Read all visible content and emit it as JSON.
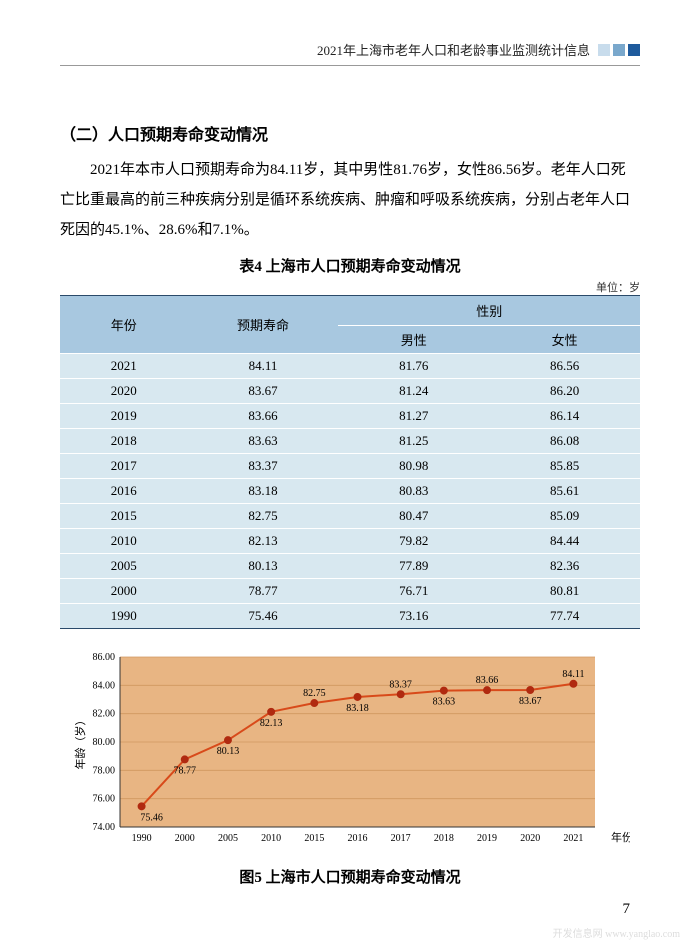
{
  "header": {
    "title": "2021年上海市老年人口和老龄事业监测统计信息",
    "box_colors": [
      "#c8dcec",
      "#7aa8cc",
      "#1e5a9c"
    ]
  },
  "section": {
    "heading": "（二）人口预期寿命变动情况",
    "paragraph": "2021年本市人口预期寿命为84.11岁，其中男性81.76岁，女性86.56岁。老年人口死亡比重最高的前三种疾病分别是循环系统疾病、肿瘤和呼吸系统疾病，分别占老年人口死因的45.1%、28.6%和7.1%。"
  },
  "table": {
    "caption": "表4  上海市人口预期寿命变动情况",
    "unit": "单位：岁",
    "headers": {
      "year": "年份",
      "life": "预期寿命",
      "gender": "性别",
      "male": "男性",
      "female": "女性"
    },
    "rows": [
      {
        "year": "2021",
        "life": "84.11",
        "male": "81.76",
        "female": "86.56"
      },
      {
        "year": "2020",
        "life": "83.67",
        "male": "81.24",
        "female": "86.20"
      },
      {
        "year": "2019",
        "life": "83.66",
        "male": "81.27",
        "female": "86.14"
      },
      {
        "year": "2018",
        "life": "83.63",
        "male": "81.25",
        "female": "86.08"
      },
      {
        "year": "2017",
        "life": "83.37",
        "male": "80.98",
        "female": "85.85"
      },
      {
        "year": "2016",
        "life": "83.18",
        "male": "80.83",
        "female": "85.61"
      },
      {
        "year": "2015",
        "life": "82.75",
        "male": "80.47",
        "female": "85.09"
      },
      {
        "year": "2010",
        "life": "82.13",
        "male": "79.82",
        "female": "84.44"
      },
      {
        "year": "2005",
        "life": "80.13",
        "male": "77.89",
        "female": "82.36"
      },
      {
        "year": "2000",
        "life": "78.77",
        "male": "76.71",
        "female": "80.81"
      },
      {
        "year": "1990",
        "life": "75.46",
        "male": "73.16",
        "female": "77.74"
      }
    ],
    "header_bg": "#a8c8e0",
    "row_bg": "#d8e8f0",
    "border_color": "#2a4a6a"
  },
  "chart": {
    "caption": "图5  上海市人口预期寿命变动情况",
    "type": "line",
    "background_color": "#e8b583",
    "plot_bg": "#e8b583",
    "line_color": "#d84a1a",
    "marker_color": "#b02a10",
    "grid_color": "#d09860",
    "axis_color": "#333333",
    "ylabel": "年龄（岁）",
    "xlabel": "年份",
    "ylim": [
      74,
      86
    ],
    "ytick_step": 2,
    "yticks": [
      "74.00",
      "76.00",
      "78.00",
      "80.00",
      "82.00",
      "84.00",
      "86.00"
    ],
    "categories": [
      "1990",
      "2000",
      "2005",
      "2010",
      "2015",
      "2016",
      "2017",
      "2018",
      "2019",
      "2020",
      "2021"
    ],
    "values": [
      75.46,
      78.77,
      80.13,
      82.13,
      82.75,
      83.18,
      83.37,
      83.63,
      83.66,
      83.67,
      84.11
    ],
    "label_positions": [
      "below",
      "below",
      "below",
      "below",
      "above",
      "below",
      "above",
      "below",
      "above",
      "below",
      "above"
    ],
    "font_size_axis": 10,
    "font_size_labels": 10,
    "marker_radius": 3.5,
    "line_width": 2
  },
  "page_number": "7",
  "watermark": "开发信息网\nwww.yanglao.com"
}
